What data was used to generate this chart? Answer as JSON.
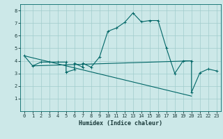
{
  "title": "",
  "xlabel": "Humidex (Indice chaleur)",
  "ylabel": "",
  "bg_color": "#cce8e8",
  "grid_color": "#a0cccc",
  "line_color": "#006666",
  "xlim": [
    -0.5,
    23.5
  ],
  "ylim": [
    0,
    8.5
  ],
  "xticks": [
    0,
    1,
    2,
    3,
    4,
    5,
    6,
    7,
    8,
    9,
    10,
    11,
    12,
    13,
    14,
    15,
    16,
    17,
    18,
    19,
    20,
    21,
    22,
    23
  ],
  "yticks": [
    1,
    2,
    3,
    4,
    5,
    6,
    7,
    8
  ],
  "series1_x": [
    0,
    1,
    2,
    3,
    4,
    5,
    5,
    6,
    6,
    7,
    7,
    8,
    9,
    10,
    11,
    12,
    13,
    14,
    15,
    16,
    17,
    18,
    19,
    20,
    20,
    21,
    22,
    23
  ],
  "series1_y": [
    4.4,
    3.6,
    3.9,
    3.9,
    3.9,
    3.9,
    3.1,
    3.3,
    3.8,
    3.5,
    3.8,
    3.5,
    4.3,
    6.35,
    6.6,
    7.05,
    7.8,
    7.1,
    7.2,
    7.2,
    5.0,
    3.0,
    4.0,
    4.0,
    1.5,
    3.05,
    3.35,
    3.2
  ],
  "series2_x": [
    0,
    20
  ],
  "series2_y": [
    4.4,
    1.2
  ],
  "series3_x": [
    1,
    20
  ],
  "series3_y": [
    3.6,
    4.0
  ],
  "font_color": "#1a3a3a",
  "xlabel_fontsize": 6.0,
  "tick_fontsize": 5.0
}
